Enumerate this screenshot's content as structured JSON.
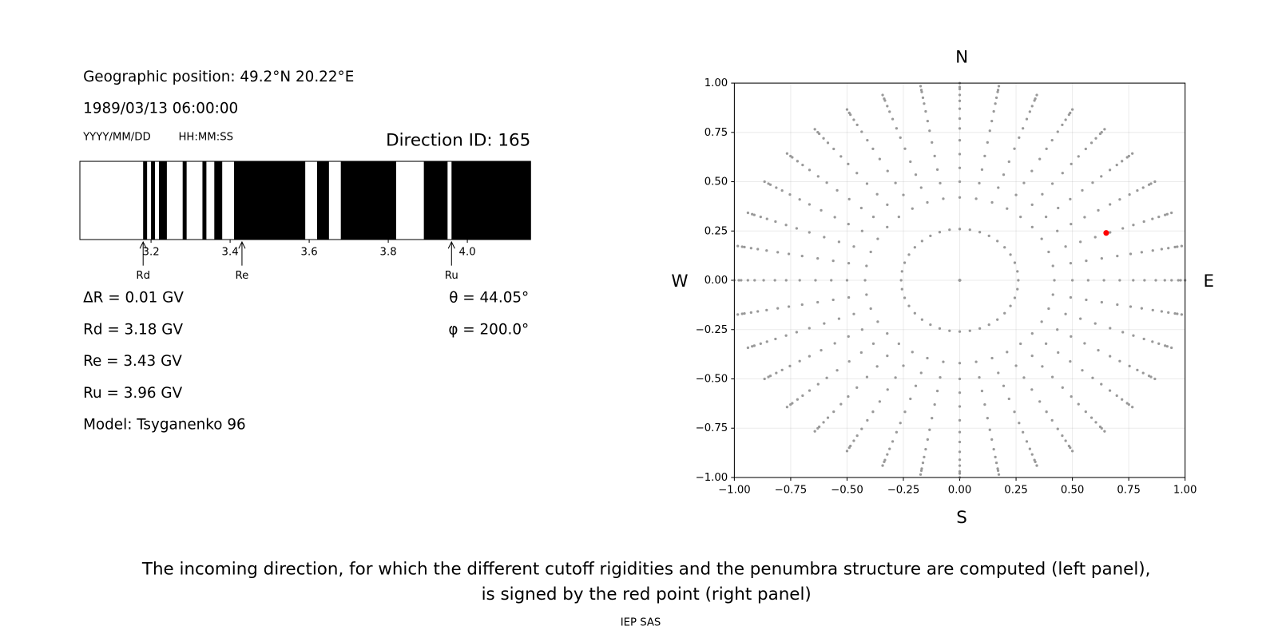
{
  "left_panel": {
    "position": "Geographic position: 49.2°N 20.22°E",
    "datetime": "1989/03/13 06:00:00",
    "date_format": "YYYY/MM/DD",
    "time_format": "HH:MM:SS",
    "direction": "Direction ID: 165",
    "penumbra": {
      "xlim": [
        3.02,
        4.16
      ],
      "xticks": [
        3.2,
        3.4,
        3.6,
        3.8,
        {
          "value": 4,
          "label": "4.0"
        }
      ],
      "allowed_bands": [
        [
          3.02,
          3.18
        ],
        [
          3.19,
          3.2
        ],
        [
          3.21,
          3.22
        ],
        [
          3.24,
          3.28
        ],
        [
          3.29,
          3.33
        ],
        [
          3.34,
          3.36
        ],
        [
          3.38,
          3.41
        ],
        [
          3.59,
          3.62
        ],
        [
          3.65,
          3.68
        ],
        [
          3.82,
          3.89
        ],
        [
          3.95,
          3.96
        ]
      ],
      "markers": [
        {
          "label": "Rd",
          "value": 3.18
        },
        {
          "label": "Re",
          "value": 3.43
        },
        {
          "label": "Ru",
          "value": 3.96
        }
      ]
    },
    "info": [
      "ΔR = 0.01 GV",
      "Rd = 3.18 GV",
      "Re = 3.43 GV",
      "Ru = 3.96 GV",
      "Model: Tsyganenko 96"
    ],
    "angles": [
      "θ = 44.05°",
      "φ = 200.0°"
    ]
  },
  "right_panel": {
    "north": "N",
    "south": "S",
    "west": "W",
    "east": "E",
    "xlim": [
      -1,
      1
    ],
    "ylim": [
      -1,
      1
    ],
    "xticks": [
      {
        "value": -1,
        "label": "−1.00"
      },
      {
        "value": -0.75,
        "label": "−0.75"
      },
      {
        "value": -0.5,
        "label": "−0.50"
      },
      {
        "value": -0.25,
        "label": "−0.25"
      },
      {
        "value": 0,
        "label": "0.00"
      },
      {
        "value": 0.25,
        "label": "0.25"
      },
      {
        "value": 0.5,
        "label": "0.50"
      },
      {
        "value": 0.75,
        "label": "0.75"
      },
      {
        "value": 1,
        "label": "1.00"
      }
    ],
    "yticks": [
      {
        "value": -1,
        "label": "−1.00"
      },
      {
        "value": -0.75,
        "label": "−0.75"
      },
      {
        "value": -0.5,
        "label": "−0.50"
      },
      {
        "value": -0.25,
        "label": "−0.25"
      },
      {
        "value": 0,
        "label": "0.00"
      },
      {
        "value": 0.25,
        "label": "0.25"
      },
      {
        "value": 0.5,
        "label": "0.50"
      },
      {
        "value": 0.75,
        "label": "0.75"
      },
      {
        "value": 1,
        "label": "1.00"
      }
    ],
    "grid": true,
    "grid_color": "#999999",
    "radii": [
      0,
      0.26,
      0.42,
      0.5,
      0.57,
      0.64,
      0.71,
      0.77,
      0.82,
      0.87,
      0.91,
      0.94,
      0.97,
      0.98,
      1.0
    ],
    "azimuths": [
      0,
      10,
      20,
      30,
      40,
      50,
      60,
      70,
      80,
      90,
      100,
      110,
      120,
      130,
      140,
      150,
      160,
      170,
      180,
      190,
      200,
      210,
      220,
      230,
      240,
      250,
      260,
      270,
      280,
      290,
      300,
      310,
      320,
      330,
      340,
      350
    ],
    "selected": {
      "x": 0.65,
      "y": 0.24,
      "color": "#ff0000"
    }
  },
  "caption": [
    "The incoming direction, for which the different cutoff rigidities and the penumbra structure are computed (left panel),",
    "is signed by the red point (right panel)"
  ],
  "footer": "IEP SAS"
}
